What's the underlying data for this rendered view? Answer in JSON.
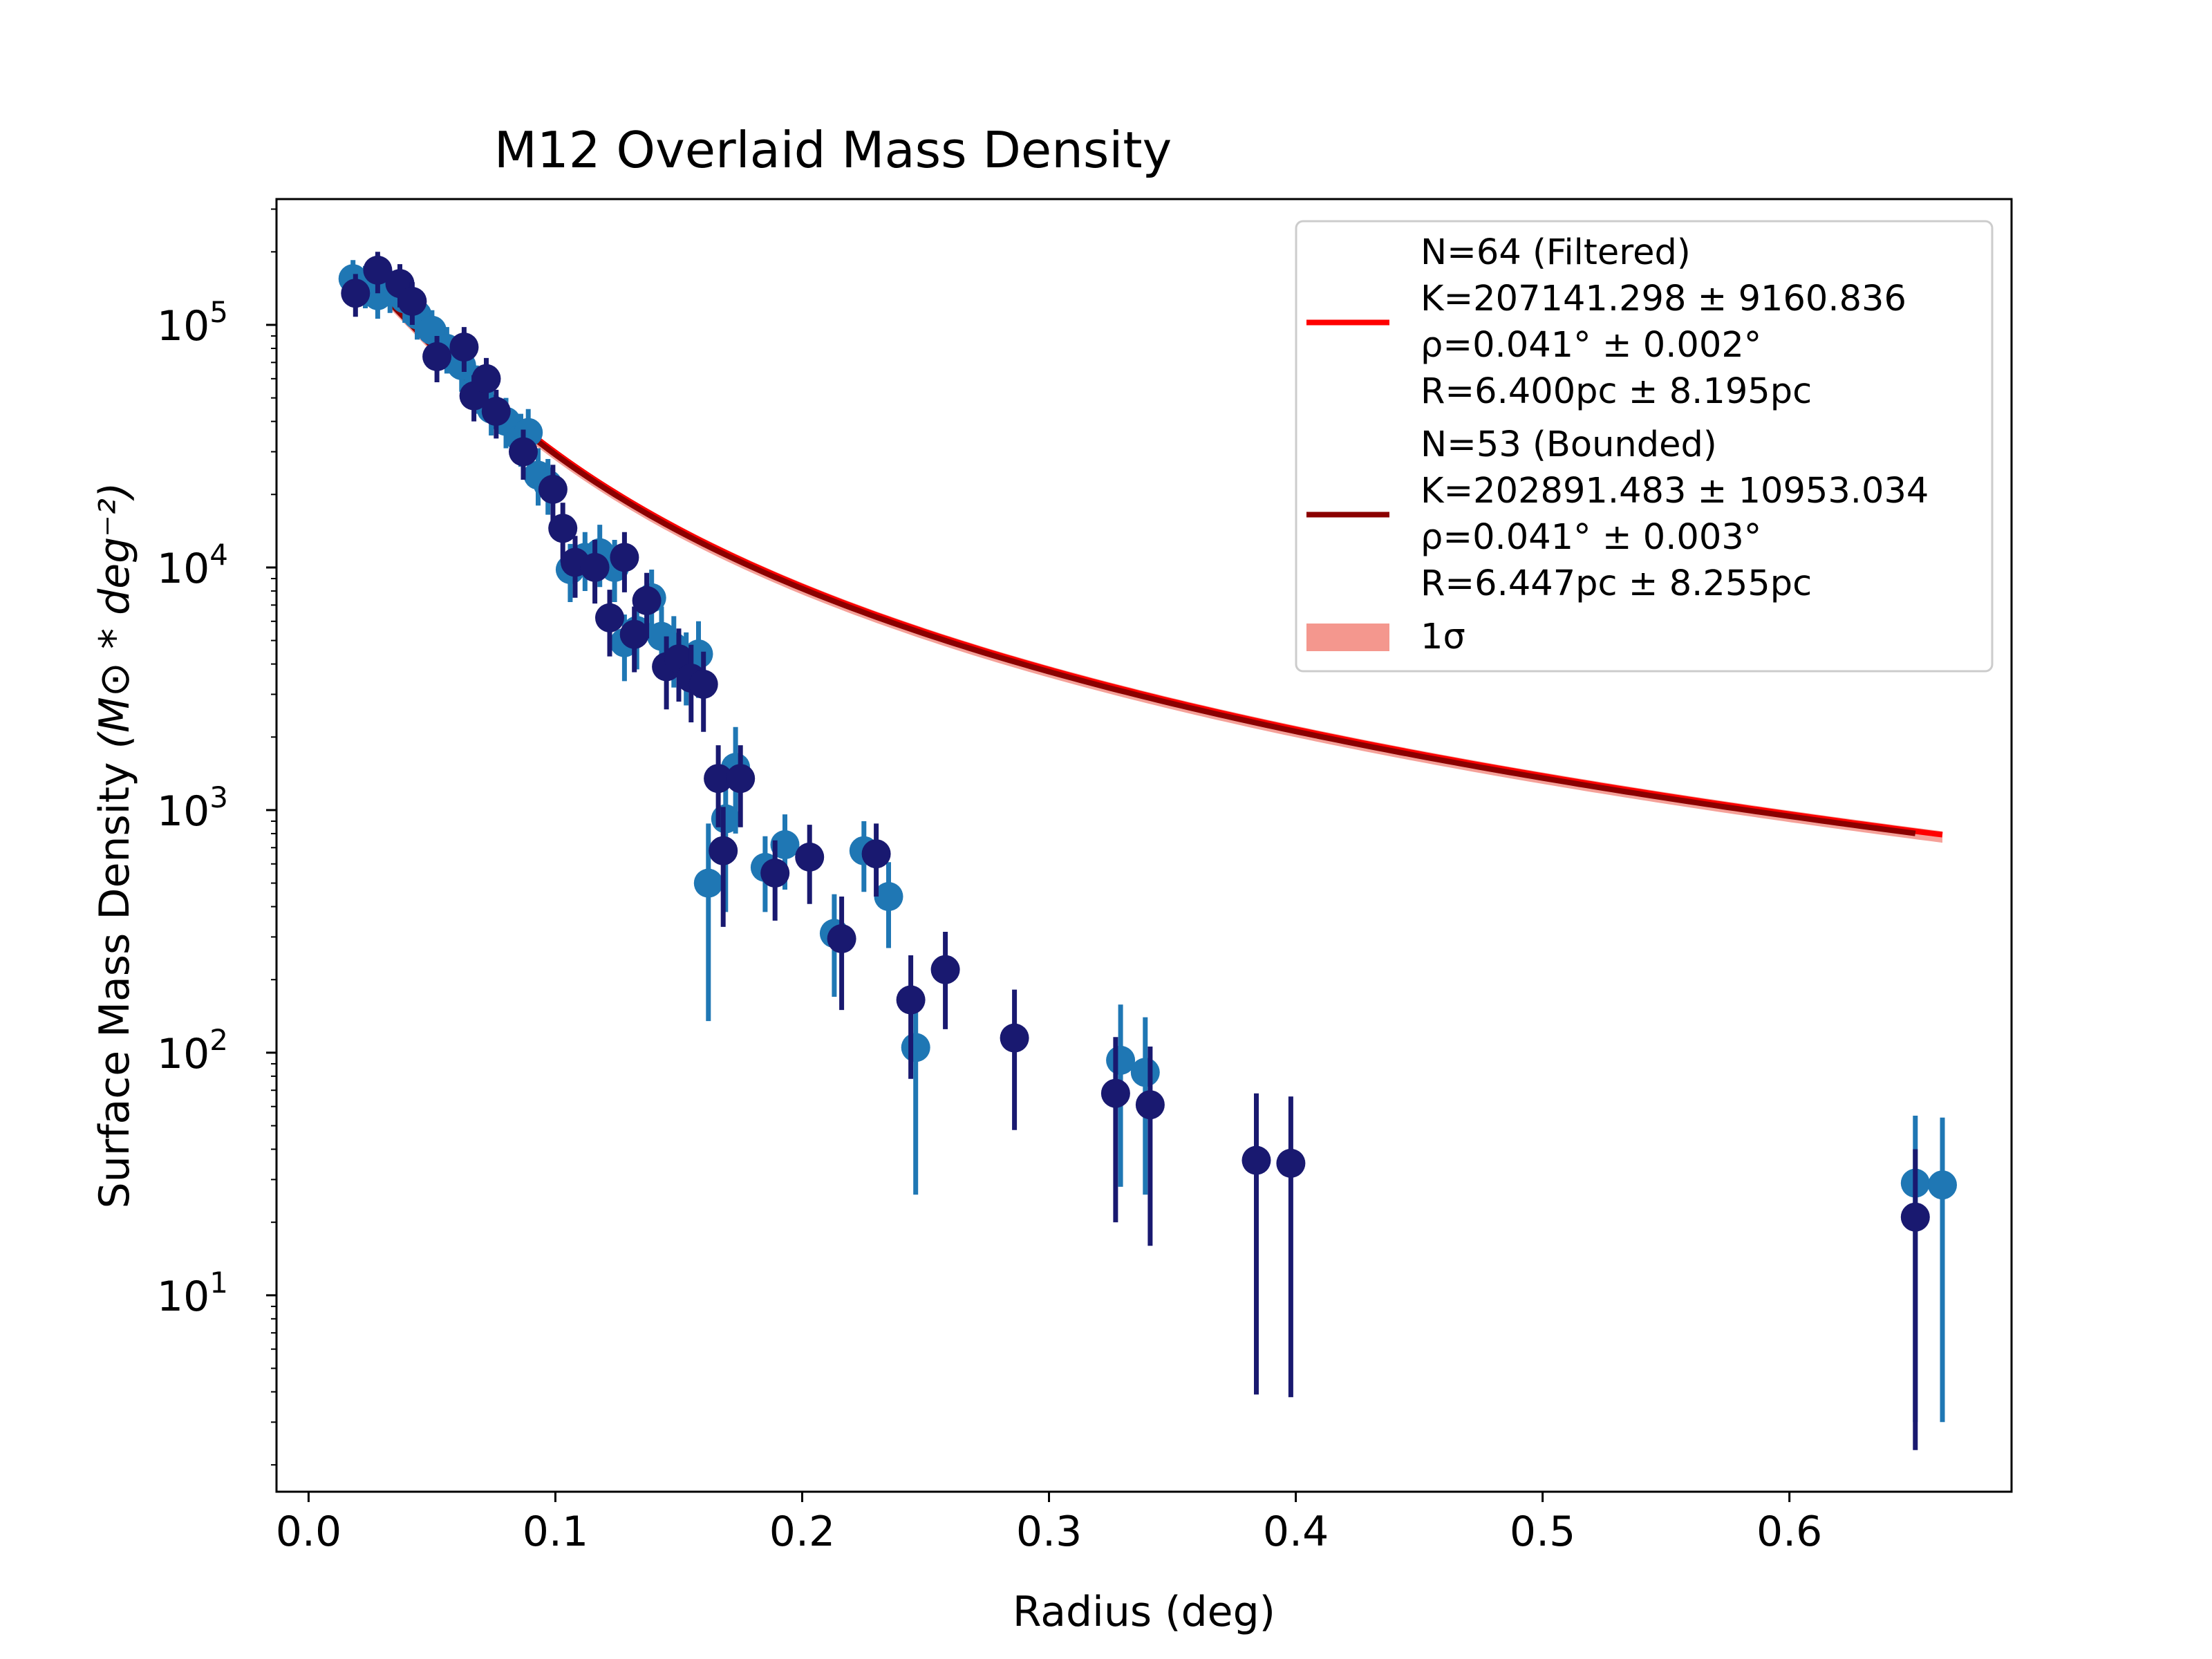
{
  "chart_data": {
    "type": "scatter",
    "title": "M12 Overlaid Mass Density",
    "xlabel": "Radius (deg)",
    "ylabel": "Surface Mass Density",
    "ylabel_math": "(M⊙ * deg⁻²)",
    "xlim": [
      -0.013,
      0.69
    ],
    "ylim": [
      1.55,
      330000
    ],
    "yscale": "log",
    "grid": false,
    "legend_position": "upper-right",
    "x_ticks": [
      {
        "value": 0.0,
        "label": "0.0"
      },
      {
        "value": 0.1,
        "label": "0.1"
      },
      {
        "value": 0.2,
        "label": "0.2"
      },
      {
        "value": 0.3,
        "label": "0.3"
      },
      {
        "value": 0.4,
        "label": "0.4"
      },
      {
        "value": 0.5,
        "label": "0.5"
      },
      {
        "value": 0.6,
        "label": "0.6"
      }
    ],
    "y_ticks": [
      {
        "value": 10,
        "base": "10",
        "exp": "1"
      },
      {
        "value": 100,
        "base": "10",
        "exp": "2"
      },
      {
        "value": 1000,
        "base": "10",
        "exp": "3"
      },
      {
        "value": 10000,
        "base": "10",
        "exp": "4"
      },
      {
        "value": 100000,
        "base": "10",
        "exp": "5"
      }
    ],
    "colors": {
      "filtered_points": "#1f77b4",
      "bounded_points": "#191970",
      "filtered_fit": "#ff0000",
      "bounded_fit": "#8b0000",
      "sigma_band": "#f4978e"
    },
    "legend": [
      {
        "key": "filtered",
        "swatch": "line",
        "color": "#ff0000",
        "lines": [
          "N=64 (Filtered)",
          "K=207141.298 ± 9160.836",
          "ρ=0.041° ± 0.002°",
          "R=6.400pc ± 8.195pc"
        ]
      },
      {
        "key": "bounded",
        "swatch": "line",
        "color": "#8b0000",
        "lines": [
          "N=53 (Bounded)",
          "K=202891.483 ± 10953.034",
          "ρ=0.041° ± 0.003°",
          "R=6.447pc ± 8.255pc"
        ]
      },
      {
        "key": "sigma",
        "swatch": "patch",
        "color": "#f4978e",
        "lines": [
          "1σ"
        ]
      }
    ],
    "series": [
      {
        "key": "filtered",
        "color": "#1f77b4",
        "points": [
          {
            "x": 0.018,
            "y": 155000,
            "lo": 125000,
            "hi": 185000
          },
          {
            "x": 0.023,
            "y": 145000,
            "lo": 117000,
            "hi": 175000
          },
          {
            "x": 0.028,
            "y": 132000,
            "lo": 106000,
            "hi": 160000
          },
          {
            "x": 0.033,
            "y": 140000,
            "lo": 112000,
            "hi": 168000
          },
          {
            "x": 0.039,
            "y": 128000,
            "lo": 102000,
            "hi": 155000
          },
          {
            "x": 0.044,
            "y": 110000,
            "lo": 87000,
            "hi": 133000
          },
          {
            "x": 0.05,
            "y": 95000,
            "lo": 75000,
            "hi": 115000
          },
          {
            "x": 0.056,
            "y": 80000,
            "lo": 63000,
            "hi": 98000
          },
          {
            "x": 0.062,
            "y": 68000,
            "lo": 53000,
            "hi": 84000
          },
          {
            "x": 0.068,
            "y": 55000,
            "lo": 43000,
            "hi": 68000
          },
          {
            "x": 0.074,
            "y": 45000,
            "lo": 35000,
            "hi": 56000
          },
          {
            "x": 0.08,
            "y": 40000,
            "lo": 31000,
            "hi": 50000
          },
          {
            "x": 0.086,
            "y": 34000,
            "lo": 26000,
            "hi": 43000
          },
          {
            "x": 0.089,
            "y": 36000,
            "lo": 28000,
            "hi": 45000
          },
          {
            "x": 0.093,
            "y": 24000,
            "lo": 18000,
            "hi": 31000
          },
          {
            "x": 0.097,
            "y": 22000,
            "lo": 16500,
            "hi": 28000
          },
          {
            "x": 0.106,
            "y": 9800,
            "lo": 7200,
            "hi": 12500
          },
          {
            "x": 0.112,
            "y": 11000,
            "lo": 8000,
            "hi": 14000
          },
          {
            "x": 0.118,
            "y": 11500,
            "lo": 8300,
            "hi": 15000
          },
          {
            "x": 0.124,
            "y": 10000,
            "lo": 7200,
            "hi": 13000
          },
          {
            "x": 0.128,
            "y": 4900,
            "lo": 3400,
            "hi": 6400
          },
          {
            "x": 0.133,
            "y": 5500,
            "lo": 3800,
            "hi": 7200
          },
          {
            "x": 0.139,
            "y": 7500,
            "lo": 5300,
            "hi": 9800
          },
          {
            "x": 0.143,
            "y": 5200,
            "lo": 3600,
            "hi": 6900
          },
          {
            "x": 0.148,
            "y": 4700,
            "lo": 3200,
            "hi": 6300
          },
          {
            "x": 0.153,
            "y": 4000,
            "lo": 2700,
            "hi": 5400
          },
          {
            "x": 0.158,
            "y": 4400,
            "lo": 2900,
            "hi": 6000
          },
          {
            "x": 0.162,
            "y": 500,
            "lo": 135,
            "hi": 880
          },
          {
            "x": 0.169,
            "y": 920,
            "lo": 380,
            "hi": 1500
          },
          {
            "x": 0.173,
            "y": 1500,
            "lo": 800,
            "hi": 2200
          },
          {
            "x": 0.185,
            "y": 580,
            "lo": 380,
            "hi": 780
          },
          {
            "x": 0.193,
            "y": 720,
            "lo": 470,
            "hi": 960
          },
          {
            "x": 0.213,
            "y": 310,
            "lo": 170,
            "hi": 450
          },
          {
            "x": 0.225,
            "y": 680,
            "lo": 460,
            "hi": 900
          },
          {
            "x": 0.235,
            "y": 440,
            "lo": 270,
            "hi": 610
          },
          {
            "x": 0.246,
            "y": 105,
            "lo": 26,
            "hi": 185
          },
          {
            "x": 0.329,
            "y": 93,
            "lo": 28,
            "hi": 158
          },
          {
            "x": 0.339,
            "y": 83,
            "lo": 26,
            "hi": 140
          },
          {
            "x": 0.651,
            "y": 29,
            "lo": 3.0,
            "hi": 55
          },
          {
            "x": 0.662,
            "y": 28.5,
            "lo": 3.0,
            "hi": 54
          }
        ]
      },
      {
        "key": "bounded",
        "color": "#191970",
        "points": [
          {
            "x": 0.019,
            "y": 135000,
            "lo": 108000,
            "hi": 162000
          },
          {
            "x": 0.028,
            "y": 168000,
            "lo": 135000,
            "hi": 200000
          },
          {
            "x": 0.037,
            "y": 148000,
            "lo": 118000,
            "hi": 178000
          },
          {
            "x": 0.042,
            "y": 125000,
            "lo": 100000,
            "hi": 150000
          },
          {
            "x": 0.052,
            "y": 74000,
            "lo": 58000,
            "hi": 90000
          },
          {
            "x": 0.063,
            "y": 81000,
            "lo": 64000,
            "hi": 98000
          },
          {
            "x": 0.067,
            "y": 51000,
            "lo": 40000,
            "hi": 62000
          },
          {
            "x": 0.072,
            "y": 60000,
            "lo": 47000,
            "hi": 73000
          },
          {
            "x": 0.076,
            "y": 44000,
            "lo": 34000,
            "hi": 54000
          },
          {
            "x": 0.087,
            "y": 30000,
            "lo": 23000,
            "hi": 37000
          },
          {
            "x": 0.099,
            "y": 21000,
            "lo": 15500,
            "hi": 26500
          },
          {
            "x": 0.103,
            "y": 14500,
            "lo": 10500,
            "hi": 18500
          },
          {
            "x": 0.108,
            "y": 10500,
            "lo": 7500,
            "hi": 13500
          },
          {
            "x": 0.116,
            "y": 10000,
            "lo": 7100,
            "hi": 13000
          },
          {
            "x": 0.122,
            "y": 6200,
            "lo": 4300,
            "hi": 8100
          },
          {
            "x": 0.128,
            "y": 11000,
            "lo": 7900,
            "hi": 14000
          },
          {
            "x": 0.132,
            "y": 5300,
            "lo": 3700,
            "hi": 6900
          },
          {
            "x": 0.137,
            "y": 7300,
            "lo": 5100,
            "hi": 9500
          },
          {
            "x": 0.145,
            "y": 3900,
            "lo": 2600,
            "hi": 5200
          },
          {
            "x": 0.15,
            "y": 4200,
            "lo": 2800,
            "hi": 5600
          },
          {
            "x": 0.155,
            "y": 3500,
            "lo": 2300,
            "hi": 4800
          },
          {
            "x": 0.16,
            "y": 3300,
            "lo": 2100,
            "hi": 4500
          },
          {
            "x": 0.166,
            "y": 1350,
            "lo": 850,
            "hi": 1850
          },
          {
            "x": 0.168,
            "y": 680,
            "lo": 330,
            "hi": 1030
          },
          {
            "x": 0.175,
            "y": 1350,
            "lo": 850,
            "hi": 1850
          },
          {
            "x": 0.189,
            "y": 550,
            "lo": 350,
            "hi": 750
          },
          {
            "x": 0.203,
            "y": 640,
            "lo": 410,
            "hi": 870
          },
          {
            "x": 0.216,
            "y": 295,
            "lo": 150,
            "hi": 440
          },
          {
            "x": 0.23,
            "y": 660,
            "lo": 440,
            "hi": 880
          },
          {
            "x": 0.244,
            "y": 165,
            "lo": 78,
            "hi": 252
          },
          {
            "x": 0.258,
            "y": 220,
            "lo": 125,
            "hi": 315
          },
          {
            "x": 0.286,
            "y": 115,
            "lo": 48,
            "hi": 182
          },
          {
            "x": 0.327,
            "y": 68,
            "lo": 20,
            "hi": 116
          },
          {
            "x": 0.341,
            "y": 61,
            "lo": 16,
            "hi": 106
          },
          {
            "x": 0.384,
            "y": 36,
            "lo": 3.9,
            "hi": 68
          },
          {
            "x": 0.398,
            "y": 35,
            "lo": 3.8,
            "hi": 66
          },
          {
            "x": 0.651,
            "y": 21,
            "lo": 2.3,
            "hi": 40
          }
        ]
      }
    ],
    "fits": [
      {
        "key": "filtered",
        "color": "#ff0000",
        "K": 207141.298,
        "rho": 0.041,
        "x_range": [
          0.018,
          0.662
        ]
      },
      {
        "key": "bounded",
        "color": "#8b0000",
        "K": 202891.483,
        "rho": 0.041,
        "x_range": [
          0.018,
          0.651
        ]
      }
    ],
    "sigma_band": {
      "color": "#f4978e",
      "K_lo": 192000,
      "K_hi": 214000,
      "rho": 0.041,
      "x_range": [
        0.018,
        0.662
      ]
    }
  }
}
